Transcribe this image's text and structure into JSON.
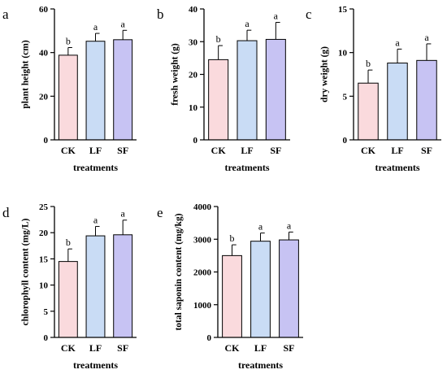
{
  "chart_data": [
    {
      "type": "bar",
      "panel": "a",
      "categories": [
        "CK",
        "LF",
        "SF"
      ],
      "values": [
        38.8,
        45.2,
        45.9
      ],
      "errors": [
        3.5,
        3.6,
        4.3
      ],
      "significance": [
        "b",
        "a",
        "a"
      ],
      "colors": [
        "#fadadd",
        "#c9dcf5",
        "#c7c3f3"
      ],
      "xlabel": "treatments",
      "ylabel": "plant height (cm)",
      "ylim": [
        0,
        60
      ],
      "yticks": [
        "0",
        "20",
        "40",
        "60"
      ]
    },
    {
      "type": "bar",
      "panel": "b",
      "categories": [
        "CK",
        "LF",
        "SF"
      ],
      "values": [
        24.5,
        30.3,
        30.7
      ],
      "errors": [
        4.3,
        3.2,
        5.2
      ],
      "significance": [
        "b",
        "a",
        "a"
      ],
      "colors": [
        "#fadadd",
        "#c9dcf5",
        "#c7c3f3"
      ],
      "xlabel": "treatments",
      "ylabel": "fresh weight (g)",
      "ylim": [
        0,
        40
      ],
      "yticks": [
        "0",
        "10",
        "20",
        "30",
        "40"
      ]
    },
    {
      "type": "bar",
      "panel": "c",
      "categories": [
        "CK",
        "LF",
        "SF"
      ],
      "values": [
        6.5,
        8.8,
        9.1
      ],
      "errors": [
        1.5,
        1.6,
        1.9
      ],
      "significance": [
        "b",
        "a",
        "a"
      ],
      "colors": [
        "#fadadd",
        "#c9dcf5",
        "#c7c3f3"
      ],
      "xlabel": "treatments",
      "ylabel": "dry weight (g)",
      "ylim": [
        0,
        15
      ],
      "yticks": [
        "0",
        "5",
        "10",
        "15"
      ]
    },
    {
      "type": "bar",
      "panel": "d",
      "categories": [
        "CK",
        "LF",
        "SF"
      ],
      "values": [
        14.5,
        19.4,
        19.6
      ],
      "errors": [
        2.4,
        1.8,
        2.8
      ],
      "significance": [
        "b",
        "a",
        "a"
      ],
      "colors": [
        "#fadadd",
        "#c9dcf5",
        "#c7c3f3"
      ],
      "xlabel": "treatments",
      "ylabel": "chlorophyll content (mg/L)",
      "ylim": [
        0,
        25
      ],
      "yticks": [
        "0",
        "5",
        "10",
        "15",
        "20",
        "25"
      ]
    },
    {
      "type": "bar",
      "panel": "e",
      "categories": [
        "CK",
        "LF",
        "SF"
      ],
      "values": [
        2500,
        2940,
        2980
      ],
      "errors": [
        330,
        250,
        240
      ],
      "significance": [
        "b",
        "a",
        "a"
      ],
      "colors": [
        "#fadadd",
        "#c9dcf5",
        "#c7c3f3"
      ],
      "xlabel": "treatments",
      "ylabel": "total saponin content (mg/kg)",
      "ylim": [
        0,
        4000
      ],
      "yticks": [
        "0",
        "1000",
        "2000",
        "3000",
        "4000"
      ]
    }
  ]
}
